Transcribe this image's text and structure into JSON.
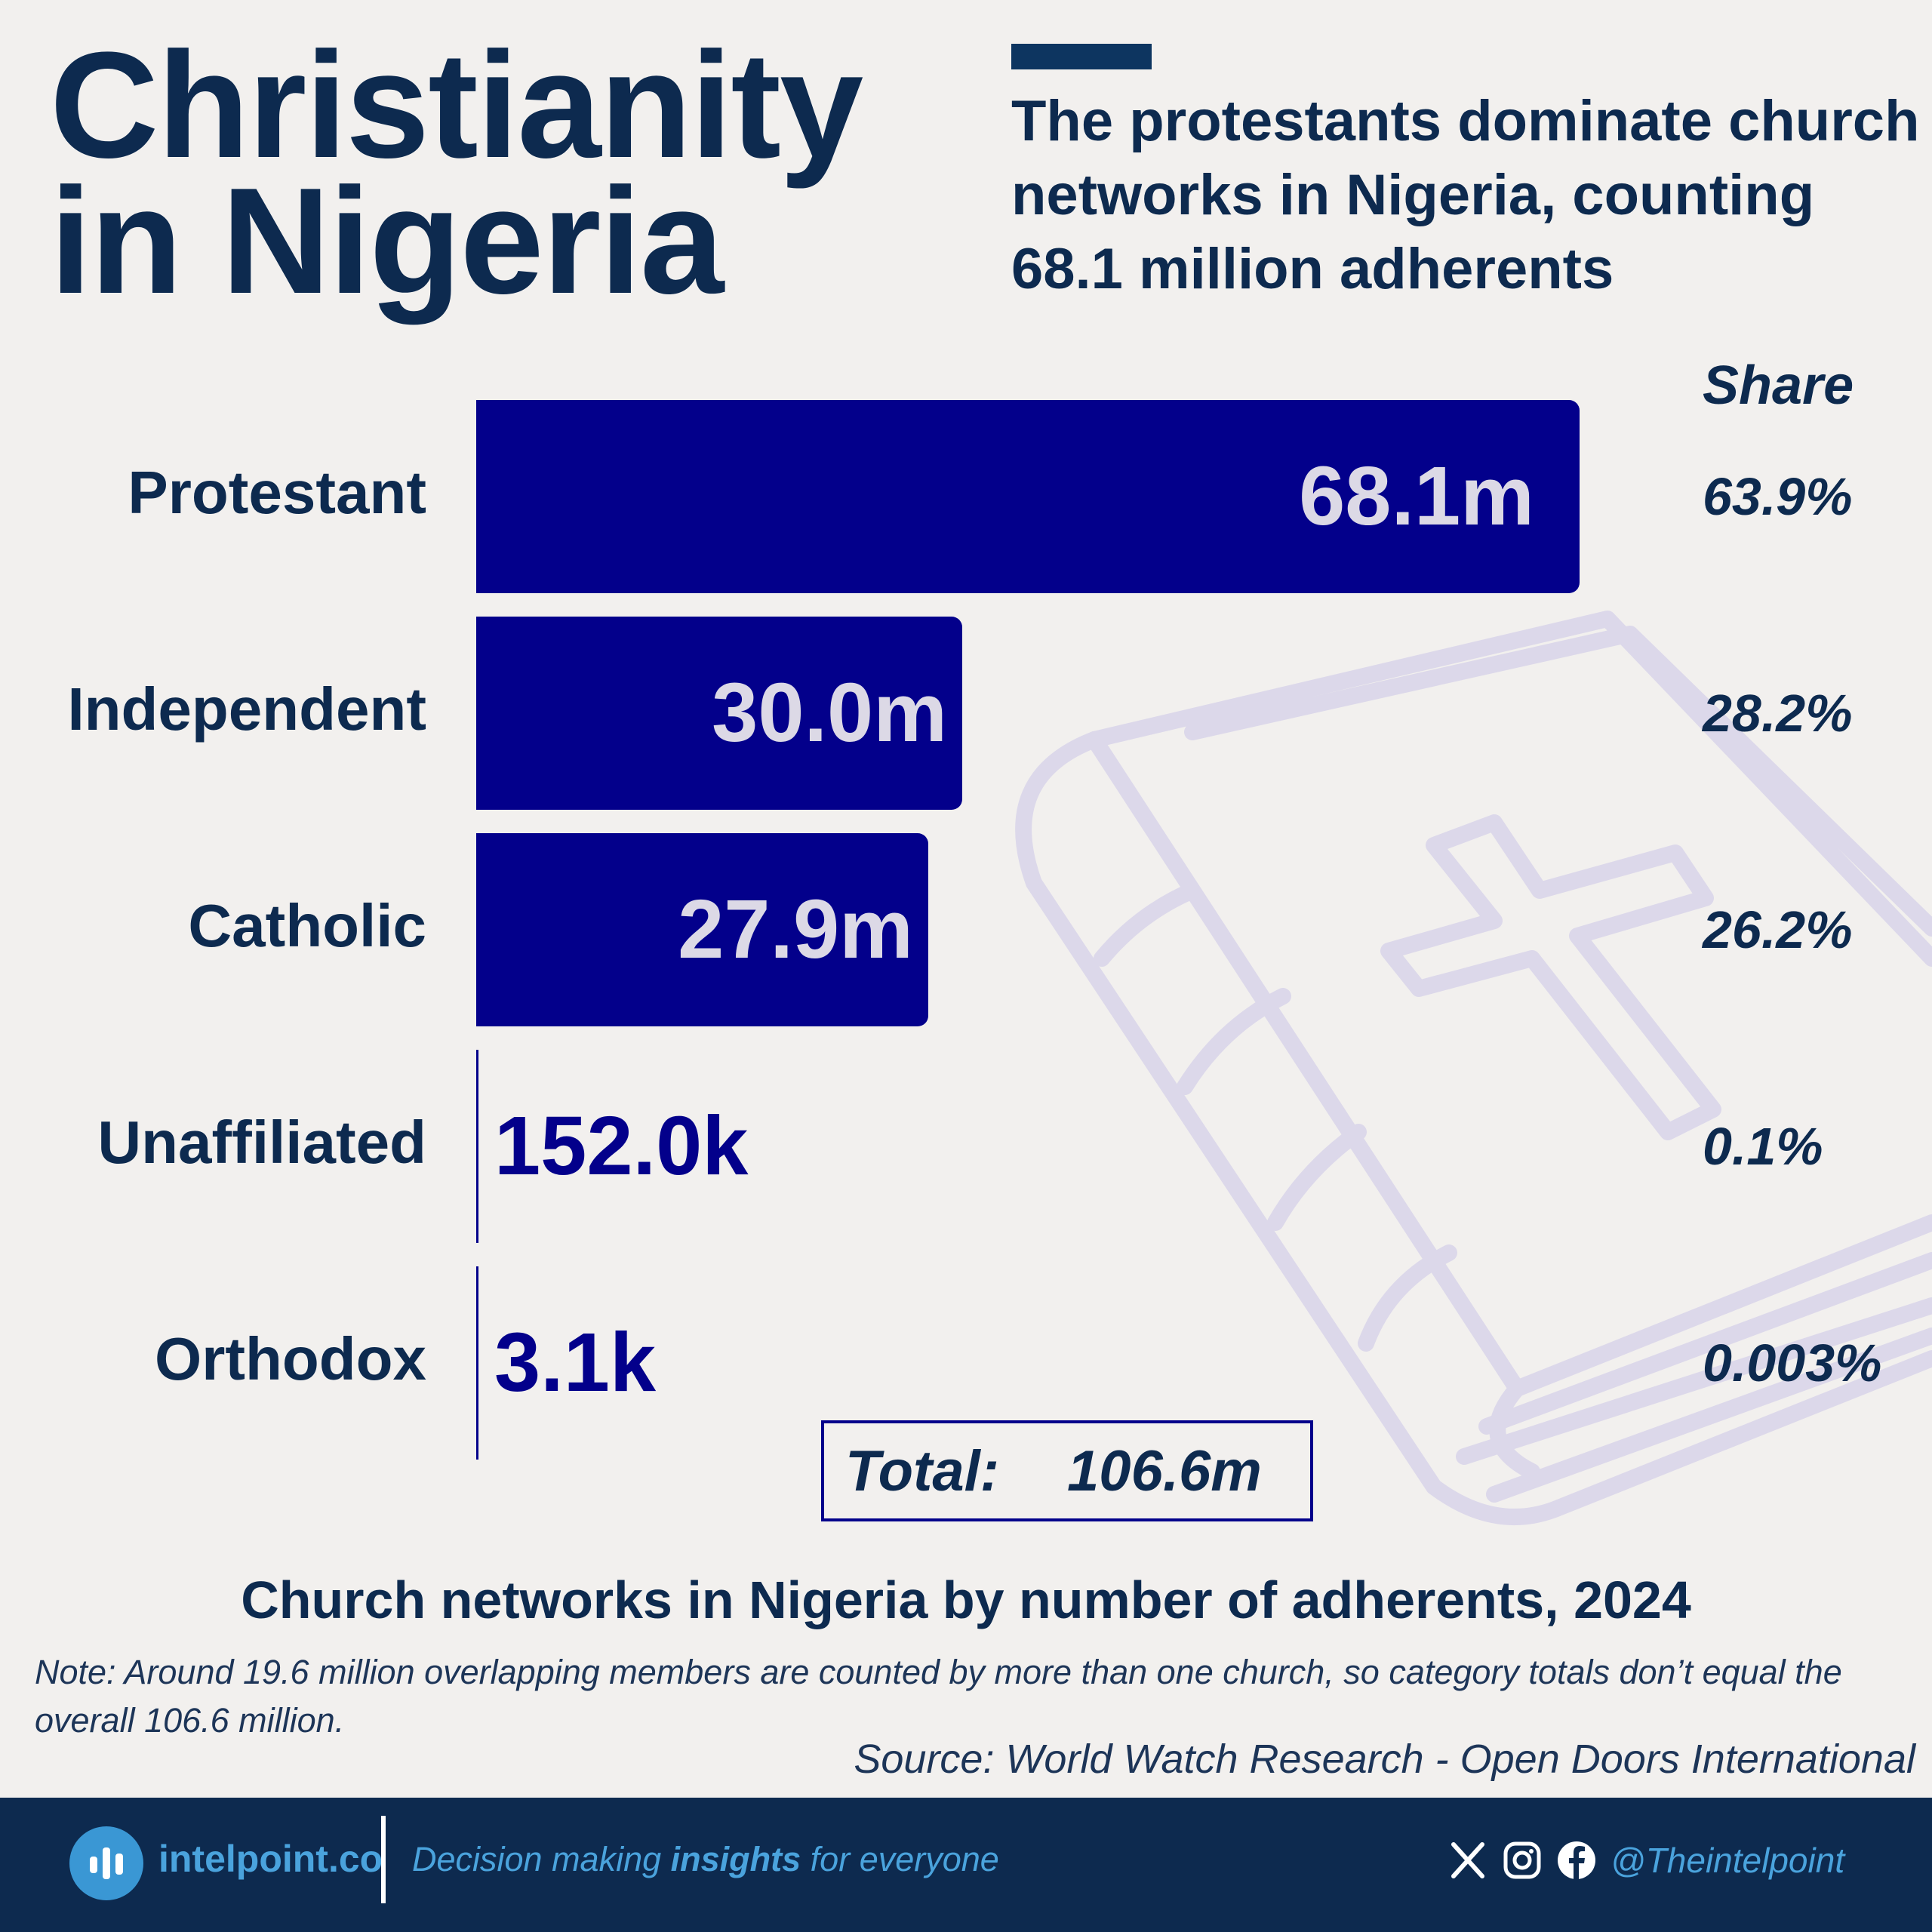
{
  "title_line1": "Christianity",
  "title_line2": "in Nigeria",
  "subtitle": "The protestants dominate church networks in Nigeria, counting 68.1 million adherents",
  "share_header": "Share",
  "chart_data": {
    "type": "bar",
    "orientation": "horizontal",
    "title": "Church networks in Nigeria by number of adherents, 2024",
    "categories": [
      "Protestant",
      "Independent",
      "Catholic",
      "Unaffiliated",
      "Orthodox"
    ],
    "values": [
      68.1,
      30.0,
      27.9,
      0.152,
      0.0031
    ],
    "value_unit": "million",
    "value_labels": [
      "68.1m",
      "30.0m",
      "27.9m",
      "152.0k",
      "3.1k"
    ],
    "shares": [
      "63.9%",
      "28.2%",
      "26.2%",
      "0.1%",
      "0.003%"
    ],
    "bar_color": "#03008b",
    "total_label": "Total:",
    "total_value": "106.6m"
  },
  "note": "Note: Around 19.6 million overlapping members are counted by more than one church, so category totals don’t equal the overall 106.6 million.",
  "source": "Source: World Watch Research - Open Doors International",
  "footer": {
    "brand": "intelpoint.co",
    "tagline_pre": "Decision making ",
    "tagline_bold": "insights",
    "tagline_post": " for everyone",
    "handle": "@Theintelpoint",
    "icons": [
      "x-icon",
      "instagram-icon",
      "facebook-icon"
    ]
  },
  "colors": {
    "navy": "#0d2a4f",
    "bar": "#03008b",
    "background": "#f2f0ee",
    "accent": "#4aa3dd"
  }
}
